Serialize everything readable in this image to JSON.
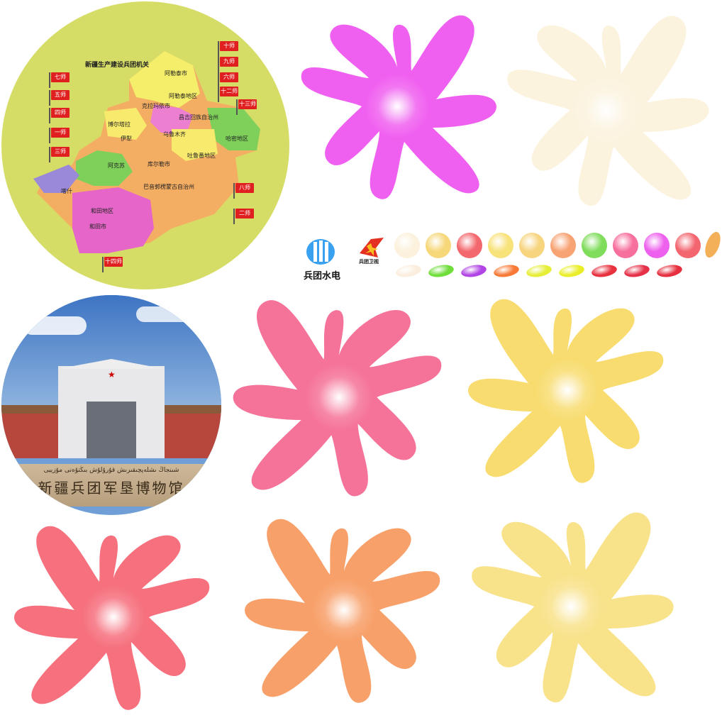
{
  "map": {
    "title": "新疆生产建设兵团机关",
    "flags": [
      "十师",
      "九师",
      "六师",
      "十二师",
      "十三师",
      "八师",
      "七师",
      "五师",
      "四师",
      "一师",
      "三师",
      "二师",
      "十四师"
    ],
    "regions": [
      "阿勒泰市",
      "阿勒泰地区",
      "克拉玛依市",
      "伊犁",
      "博尔塔拉",
      "昌吉回族自治州",
      "乌鲁木齐",
      "哈密地区",
      "吐鲁番地区",
      "库尔勒市",
      "巴音郭楞蒙古自治州",
      "阿克苏",
      "喀什",
      "和田地区",
      "和田市"
    ]
  },
  "museum": {
    "sign_uyghur": "شىنجاڭ ىشلەپچىقىرىش قۇرۇلۇش بىڭتۇەنى مۇزېيى",
    "sign_chinese": "新疆兵团军垦博物馆"
  },
  "logos": {
    "hydro_label": "兵团水电",
    "tv_label": "兵团卫视"
  },
  "colors": {
    "magenta": "#f060f0",
    "cream": "#fdf3d8",
    "pink": "#f57398",
    "yellow": "#f8dc70",
    "coral": "#f6707e",
    "orange": "#f8a06a",
    "lightyellow": "#f8e28a",
    "green": "#7ddc5a",
    "violet": "#a040e0",
    "red": "#e8304c"
  },
  "swatches_row1": [
    "#fbf1dc",
    "#f6d77a",
    "#f3686e",
    "#f8e27a",
    "#f7d47e",
    "#f8a374",
    "#80dd5c",
    "#f76f9c",
    "#ee60ee",
    "#f36670"
  ],
  "swatches_row2": [
    "#fbeede",
    "#6fdd3a",
    "#b044e4",
    "#f87a36",
    "#e6ee38",
    "#eaee28",
    "#e8303e",
    "#e63048",
    "#e63040"
  ]
}
